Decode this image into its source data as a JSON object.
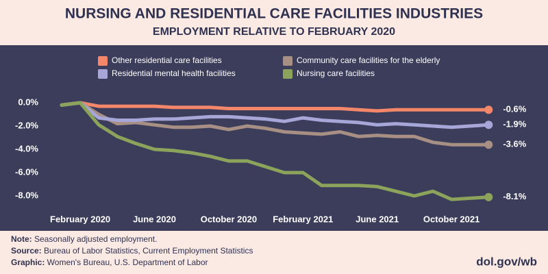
{
  "chart_data": {
    "type": "line",
    "title": "NURSING AND RESIDENTIAL CARE FACILITIES INDUSTRIES",
    "subtitle": "EMPLOYMENT RELATIVE TO FEBRUARY 2020",
    "categories": [
      null,
      "February 2020",
      null,
      null,
      null,
      "June 2020",
      null,
      null,
      null,
      "October 2020",
      null,
      null,
      null,
      "February 2021",
      null,
      null,
      null,
      "June 2021",
      null,
      null,
      null,
      "October 2021",
      null,
      null
    ],
    "ylim": [
      -8.8,
      0.6
    ],
    "yticks": [
      {
        "value": 0,
        "label": "0.0%"
      },
      {
        "value": -2,
        "label": "-2.0%"
      },
      {
        "value": -4,
        "label": "-4.0%"
      },
      {
        "value": -6,
        "label": "-6.0%"
      },
      {
        "value": -8,
        "label": "-8.0%"
      }
    ],
    "grid": false,
    "series": [
      {
        "name": "Other residential care facilities",
        "color": "#f4876a",
        "values": [
          -0.2,
          0.0,
          -0.3,
          -0.3,
          -0.3,
          -0.3,
          -0.4,
          -0.4,
          -0.4,
          -0.5,
          -0.5,
          -0.5,
          -0.5,
          -0.5,
          -0.5,
          -0.5,
          -0.6,
          -0.7,
          -0.6,
          -0.6,
          -0.6,
          -0.6,
          -0.6,
          -0.6
        ],
        "value_labels": [
          null,
          null,
          null,
          null,
          null,
          null,
          null,
          null,
          null,
          null,
          null,
          null,
          null,
          null,
          null,
          null,
          null,
          null,
          null,
          null,
          null,
          null,
          null,
          "-0.6%"
        ]
      },
      {
        "name": "Community care facilities for the elderly",
        "color": "#a88f84",
        "values": [
          -0.2,
          0.0,
          -1.0,
          -1.8,
          -1.7,
          -1.9,
          -2.1,
          -2.1,
          -2.0,
          -2.3,
          -2.0,
          -2.2,
          -2.5,
          -2.6,
          -2.7,
          -2.5,
          -2.9,
          -2.8,
          -2.9,
          -2.9,
          -3.4,
          -3.6,
          -3.6,
          -3.6
        ],
        "value_labels": [
          null,
          null,
          null,
          null,
          null,
          null,
          null,
          null,
          null,
          null,
          null,
          null,
          null,
          null,
          null,
          null,
          null,
          null,
          null,
          null,
          null,
          null,
          null,
          "-3.6%"
        ]
      },
      {
        "name": "Residential mental health facilities",
        "color": "#a6a6d8",
        "values": [
          -0.2,
          0.0,
          -1.3,
          -1.5,
          -1.5,
          -1.4,
          -1.4,
          -1.3,
          -1.2,
          -1.2,
          -1.3,
          -1.4,
          -1.6,
          -1.3,
          -1.5,
          -1.6,
          -1.7,
          -1.9,
          -1.8,
          -1.9,
          -2.0,
          -2.1,
          -2.0,
          -1.9
        ],
        "value_labels": [
          null,
          null,
          null,
          null,
          null,
          null,
          null,
          null,
          null,
          null,
          null,
          null,
          null,
          null,
          null,
          null,
          null,
          null,
          null,
          null,
          null,
          null,
          null,
          "-1.9%"
        ]
      },
      {
        "name": "Nursing care facilities",
        "color": "#8ba35a",
        "values": [
          -0.2,
          0.0,
          -1.9,
          -2.9,
          -3.5,
          -4.0,
          -4.1,
          -4.3,
          -4.6,
          -5.0,
          -5.0,
          -5.5,
          -6.0,
          -6.0,
          -7.1,
          -7.1,
          -7.1,
          -7.2,
          -7.6,
          -8.0,
          -7.6,
          -8.3,
          -8.2,
          -8.1
        ],
        "value_labels": [
          null,
          null,
          null,
          null,
          null,
          null,
          null,
          null,
          null,
          null,
          null,
          null,
          null,
          null,
          null,
          null,
          null,
          null,
          null,
          null,
          null,
          null,
          null,
          "-8.1%"
        ]
      }
    ]
  },
  "footer": {
    "notes": [
      {
        "label": "Note:",
        "text": " Seasonally adjusted employment."
      },
      {
        "label": "Source:",
        "text": " Bureau of Labor Statistics, Current Employment Statistics"
      },
      {
        "label": "Graphic:",
        "text": " Women's Bureau, U.S. Department of Labor"
      }
    ],
    "url": "dol.gov/wb"
  }
}
